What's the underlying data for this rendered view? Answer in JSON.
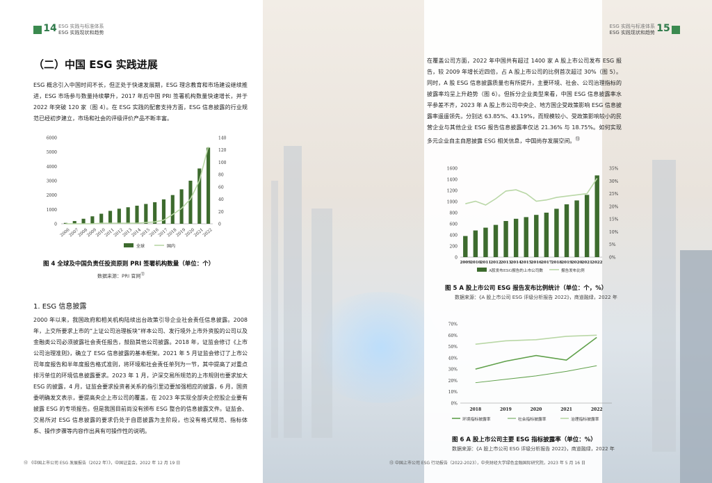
{
  "left_header": {
    "page": "14",
    "line1": "ESG 实践与标准体系",
    "line2": "ESG 实践现状和趋势"
  },
  "right_header": {
    "page": "15",
    "line1": "ESG 实践与标准体系",
    "line2": "ESG 实践现状和趋势"
  },
  "section_title": "（二）中国 ESG 实践进展",
  "intro_paragraph": "ESG 概念引入中国时间不长，但正处于快速发展期，ESG 理念教育和市场建设继续推进，ESG 市场参与数量持续攀升，2017 年后中国 PRI 签署机构数量快速增长，并于 2022 年突破 120 家（图 4）。在 ESG 实践的配套支持方面，ESG 信息披露的行业规范已经初步建立，市场和社会的评级评价产品不断丰富。",
  "fig4": {
    "caption": "图 4 全球及中国负责任投资原则 PRI 签署机构数量（单位：个）",
    "source": "数据来源：PRI 官网",
    "source_note": "⑫"
  },
  "subsection_title": "1. ESG 信息披露",
  "disclosure_paragraph": "2000 年以来，我国政府和相关机构陆续出台政策引导企业社会责任信息披露。2008 年，上交所要求上市的“上证公司治理板块”样本公司、发行境外上市外资股的公司以及金融类公司必须披露社会责任报告，鼓励其他公司披露。2018 年，证监会修订《上市公司治理准则》，确立了 ESG 信息披露的基本框架。2021 年 5 月证监会修订了上市公司年度报告和半年度报告格式准则，将环境和社会责任单列为一节，其中提高了对重点排污单位的环境信息披露要求。2023 年 1 月，沪深交易所规范的上市规则也要求加大 ESG 的披露，4 月，证监会要求投资者关系的指引里边要加强相应的披露，6 月，国资委明确发文表示，要提高央企上市公司的覆盖，在 2023 年实现全部央企控股企业要有披露 ESG 的专项报告。但是我国目前尚没有颁布 ESG 整合的信息披露文件。证监会、交易所对 ESG 信息披露的要求仍处于自愿披露为主阶段，也没有格式规范、指标体系、操作步骤等内容作出具有可操作性的说明。",
  "right_paragraph": "在覆盖公司方面，2022 年中国共有超过 1400 家 A 股上市公司发布 ESG 报告，较 2009 年增长近四倍，占 A 股上市公司的比例首次超过 30%（图 5）。同时，A 股 ESG 信息披露质量也有所提升，主要环境、社会、公司治理指标的披露率均呈上升趋势（图 6）。但拆分企业类型来看，中国 ESG 信息披露率水平参差不齐，2023 年 A 股上市公司中央企、地方国企受政策影响 ESG 信息披露率遥遥领先，分别达 63.85%、43.19%，而规模较小、受政策影响较小的民营企业与其他企业 ESG 报告信息披露率仅达 21.36% 与 18.75%。如何实现多元企业自主自愿披露 ESG 相关信息，中国尚存发展空间。",
  "right_paragraph_note": "⑬",
  "fig5": {
    "caption": "图 5 A 股上市公司 ESG 报告发布比例统计（单位：个，%）",
    "source": "数据来源：《A 股上市公司 ESG 评级分析报告 2022》，商道融绿，2022 年"
  },
  "fig6": {
    "caption": "图 6 A 股上市公司主要 ESG 指标披露率（单位：%）",
    "source": "数据来源：《A 股上市公司 ESG 评级分析报告 2022》，商道融绿，2022 年"
  },
  "footnotes": {
    "left_mark": "⑫",
    "left": "《中国上市公司 ESG 发展报告（2022 年）》，中国证监会，2022 年 12 月 19 日",
    "right_mark": "⑬",
    "right": "中国上市公司 ESG 行动报告（2022-2023），中央财经大学绿色金融国际研究院，2023 年 5 月 16 日"
  },
  "colors": {
    "dark_green": "#3d6b2e",
    "light_green": "#b9d7a6",
    "mid_green": "#5fa04a"
  },
  "chart_data": [
    {
      "type": "bar",
      "categories": [
        "2006",
        "2007",
        "2008",
        "2009",
        "2010",
        "2011",
        "2012",
        "2013",
        "2014",
        "2015",
        "2016",
        "2017",
        "2018",
        "2019",
        "2020",
        "2021",
        "2022"
      ],
      "series": [
        {
          "name": "全球",
          "values": [
            60,
            190,
            350,
            520,
            700,
            900,
            1050,
            1150,
            1260,
            1380,
            1500,
            1700,
            2000,
            2400,
            3000,
            3850,
            5300
          ],
          "axis": "left"
        },
        {
          "name": "国内",
          "values": [
            0,
            0,
            0,
            0,
            1,
            1,
            1,
            1,
            1,
            2,
            3,
            6,
            15,
            25,
            40,
            70,
            125
          ],
          "axis": "right",
          "render": "line"
        }
      ],
      "ylim": [
        0,
        6000
      ],
      "yticks": [
        0,
        1000,
        2000,
        3000,
        4000,
        5000,
        6000
      ],
      "y2lim": [
        0,
        140
      ],
      "y2ticks": [
        0,
        20,
        40,
        60,
        80,
        100,
        120,
        140
      ],
      "legend": "bottom"
    },
    {
      "type": "bar",
      "categories": [
        "2009",
        "2010",
        "2011",
        "2012",
        "2013",
        "2014",
        "2015",
        "2016",
        "2017",
        "2018",
        "2019",
        "2020",
        "2021",
        "2022"
      ],
      "series": [
        {
          "name": "A股发布ESG报告的上市公司数",
          "values": [
            380,
            480,
            530,
            580,
            650,
            690,
            720,
            760,
            800,
            870,
            950,
            1020,
            1120,
            1470
          ],
          "axis": "left"
        },
        {
          "name": "报告发布比例",
          "values": [
            0.21,
            0.22,
            0.205,
            0.23,
            0.26,
            0.265,
            0.25,
            0.22,
            0.225,
            0.235,
            0.24,
            0.245,
            0.25,
            0.31
          ],
          "axis": "right",
          "render": "line"
        }
      ],
      "ylim": [
        0,
        1600
      ],
      "yticks": [
        0,
        200,
        400,
        600,
        800,
        1000,
        1200,
        1400,
        1600
      ],
      "y2lim": [
        0,
        0.35
      ],
      "y2ticks": [
        "0%",
        "5%",
        "10%",
        "15%",
        "20%",
        "25%",
        "30%",
        "35%"
      ],
      "legend": "bottom"
    },
    {
      "type": "line",
      "x": [
        "2018",
        "2019",
        "2020",
        "2021",
        "2022"
      ],
      "series": [
        {
          "name": "环境指标披露率",
          "values": [
            0.3,
            0.37,
            0.42,
            0.38,
            0.58
          ]
        },
        {
          "name": "社会指标披露率",
          "values": [
            0.18,
            0.21,
            0.24,
            0.28,
            0.33
          ]
        },
        {
          "name": "治理指标披露率",
          "values": [
            0.52,
            0.55,
            0.56,
            0.59,
            0.6
          ]
        }
      ],
      "ylim": [
        0,
        0.7
      ],
      "yticks": [
        "0%",
        "10%",
        "20%",
        "30%",
        "40%",
        "50%",
        "60%",
        "70%"
      ],
      "legend": "bottom"
    }
  ]
}
